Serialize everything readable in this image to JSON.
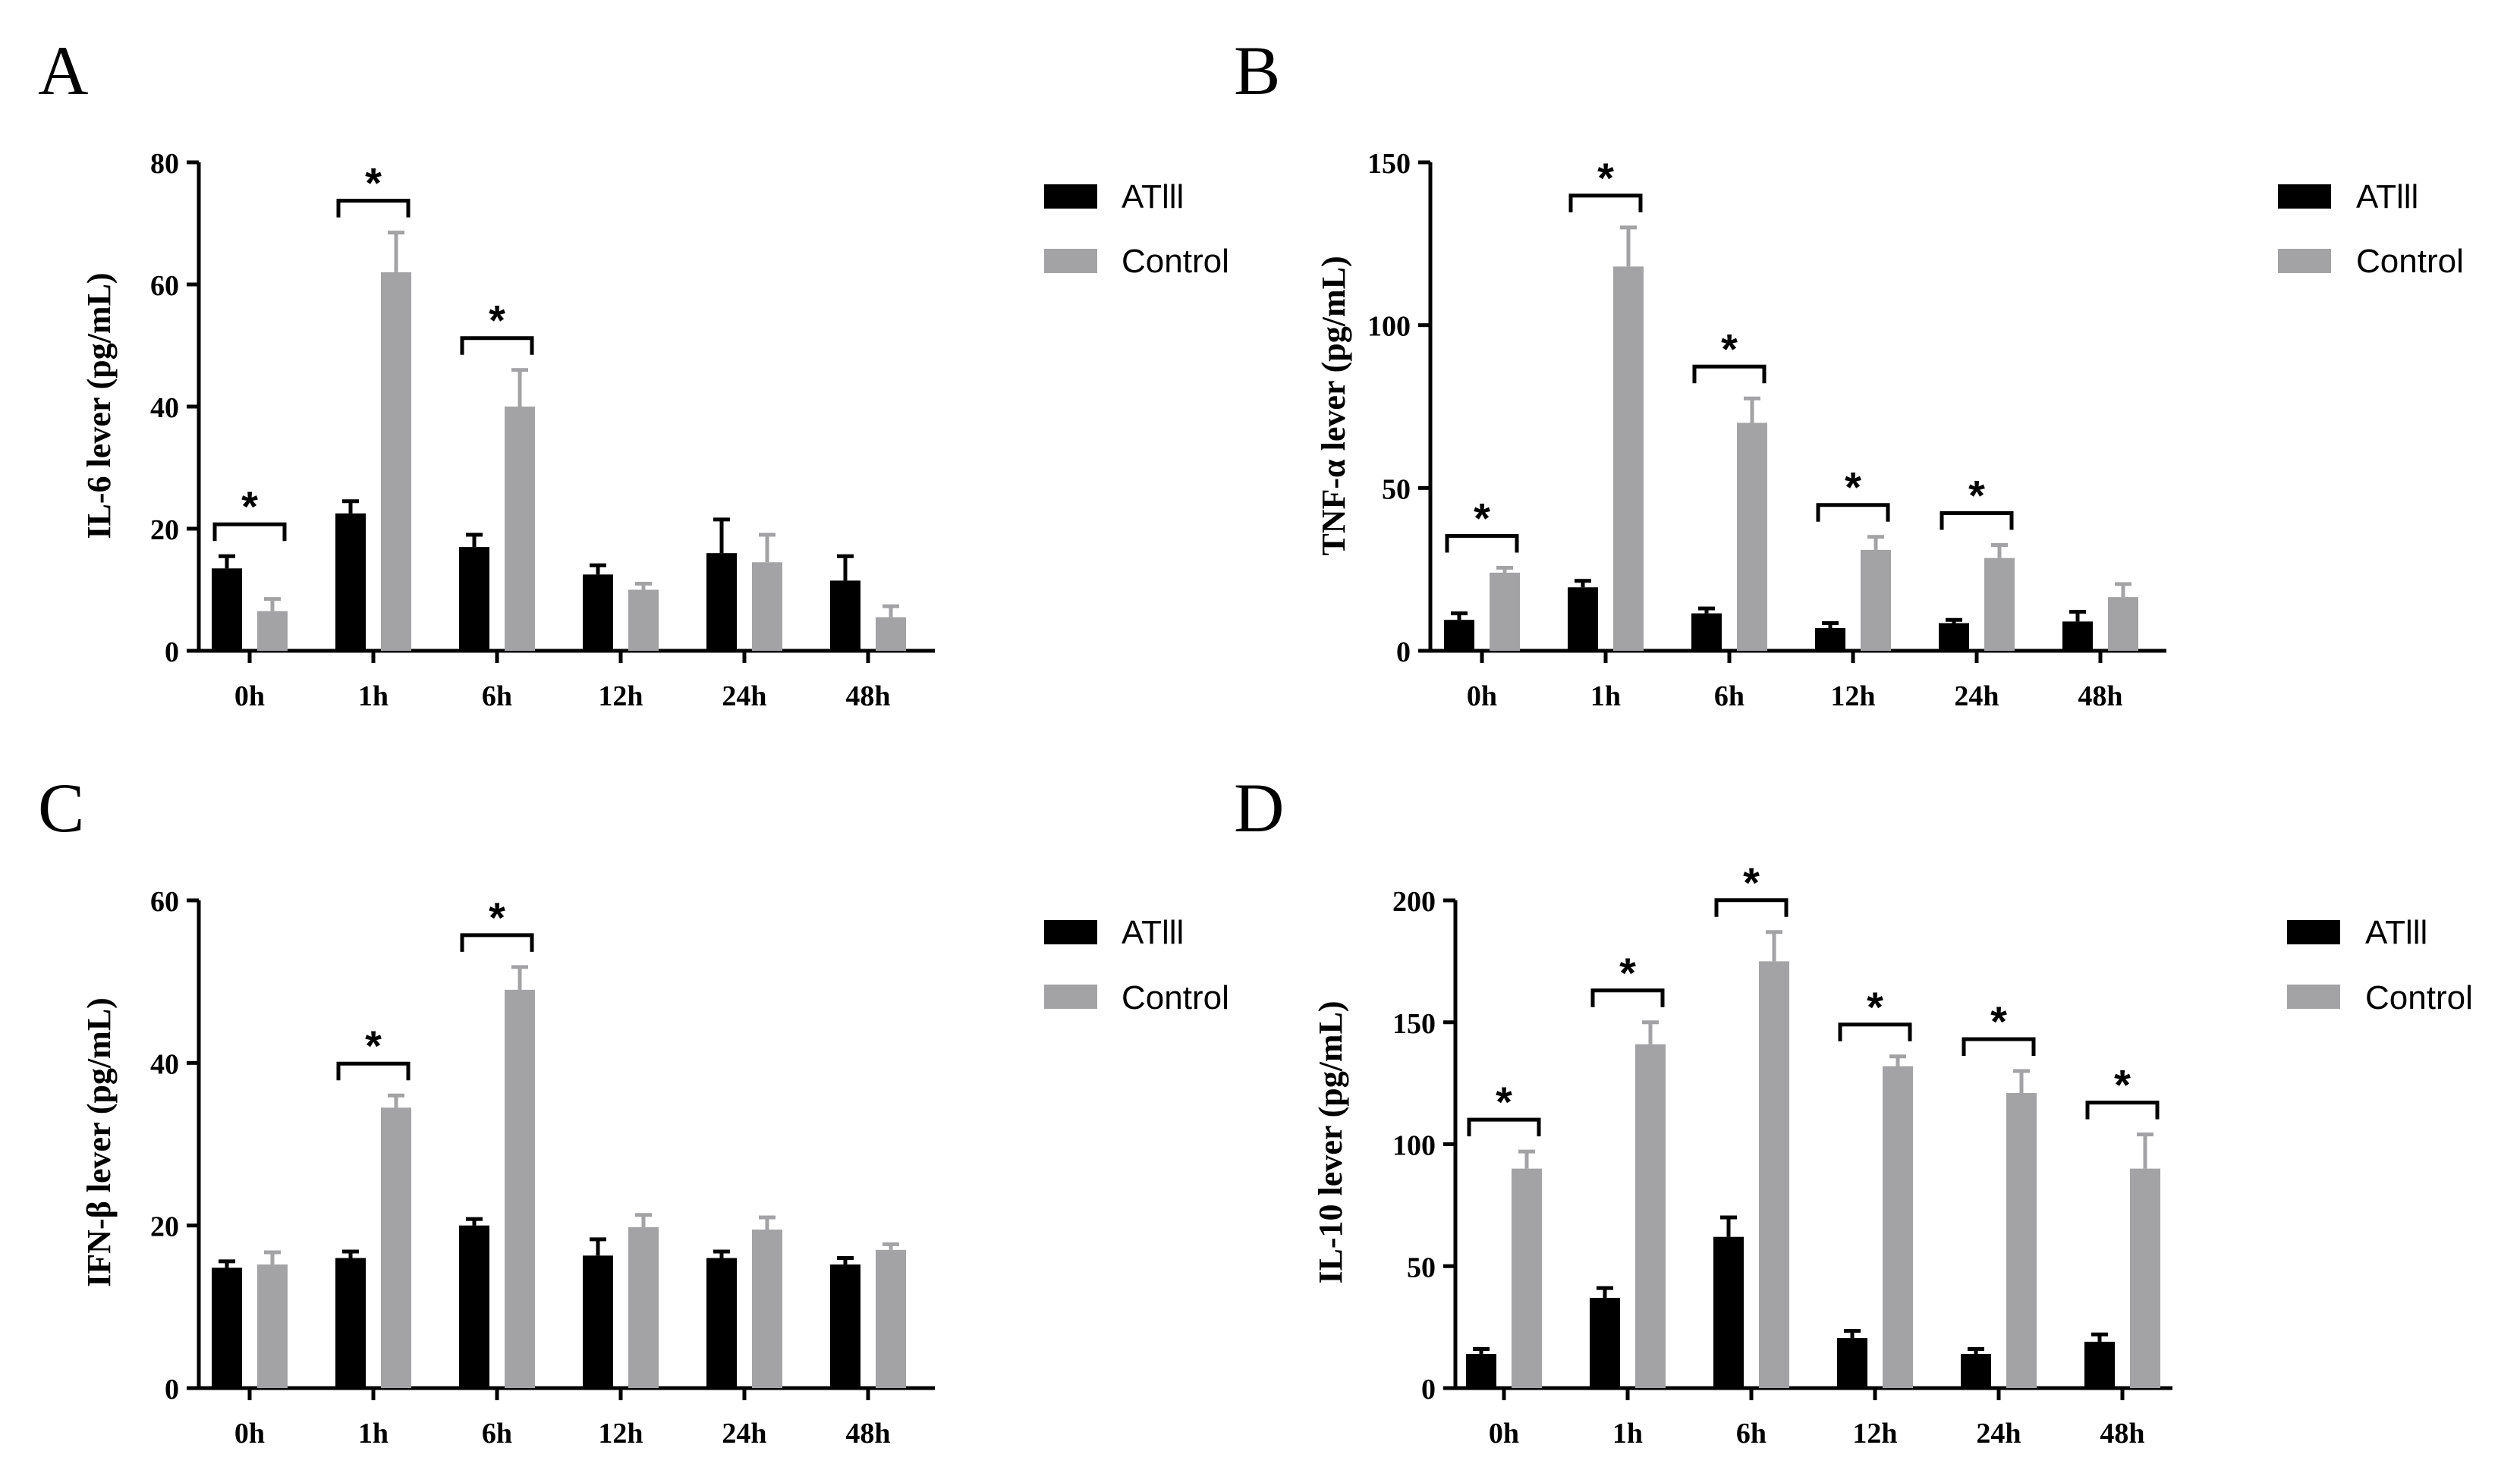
{
  "colors": {
    "atiii": "#000000",
    "control": "#a3a3a5",
    "axis": "#000000"
  },
  "chart_data": [
    {
      "type": "bar",
      "panel": "A",
      "title": "",
      "ylabel": "IL-6 lever (pg/mL)",
      "xlabel": "",
      "categories": [
        "0h",
        "1h",
        "6h",
        "12h",
        "24h",
        "48h"
      ],
      "ylim": [
        0,
        80
      ],
      "yticks": [
        0,
        20,
        40,
        60,
        80
      ],
      "ytick_labels": [
        "0",
        "20",
        "40",
        "60",
        "80"
      ],
      "series": [
        {
          "name": "ATIII",
          "label": "ATlll",
          "values": [
            13.5,
            22.5,
            17,
            12.5,
            16,
            11.5
          ],
          "errors": [
            2,
            2,
            2,
            1.5,
            5.5,
            4
          ]
        },
        {
          "name": "Control",
          "label": "Control",
          "values": [
            6.5,
            62,
            40,
            10,
            14.5,
            5.5
          ],
          "errors": [
            2,
            6.5,
            6,
            1,
            4.5,
            1.8
          ]
        }
      ],
      "significance": [
        true,
        true,
        true,
        false,
        false,
        false
      ],
      "significance_label": "*",
      "legend": "right"
    },
    {
      "type": "bar",
      "panel": "B",
      "title": "",
      "ylabel": "TNF-α lever (pg/mL)",
      "xlabel": "",
      "categories": [
        "0h",
        "1h",
        "6h",
        "12h",
        "24h",
        "48h"
      ],
      "ylim": [
        0,
        150
      ],
      "yticks": [
        0,
        50,
        100,
        150
      ],
      "ytick_labels": [
        "0",
        "50",
        "100",
        "150"
      ],
      "series": [
        {
          "name": "ATIII",
          "label": "ATlll",
          "values": [
            9.5,
            19.5,
            11.5,
            7,
            8.5,
            9
          ],
          "errors": [
            2,
            2,
            1.5,
            1.5,
            1,
            3
          ]
        },
        {
          "name": "Control",
          "label": "Control",
          "values": [
            24,
            118,
            70,
            31,
            28.5,
            16.5
          ],
          "errors": [
            1.5,
            12,
            7.5,
            4,
            4,
            4
          ]
        }
      ],
      "significance": [
        true,
        true,
        true,
        true,
        true,
        false
      ],
      "significance_label": "*",
      "legend": "right"
    },
    {
      "type": "bar",
      "panel": "C",
      "title": "",
      "ylabel": "IFN-β lever (pg/mL)",
      "xlabel": "",
      "categories": [
        "0h",
        "1h",
        "6h",
        "12h",
        "24h",
        "48h"
      ],
      "ylim": [
        0,
        60
      ],
      "yticks": [
        0,
        20,
        40,
        60
      ],
      "ytick_labels": [
        "0",
        "20",
        "40",
        "60"
      ],
      "series": [
        {
          "name": "ATIII",
          "label": "ATlll",
          "values": [
            14.8,
            16,
            20,
            16.3,
            16,
            15.2
          ],
          "errors": [
            0.8,
            0.8,
            0.8,
            2,
            0.8,
            0.8
          ]
        },
        {
          "name": "Control",
          "label": "Control",
          "values": [
            15.2,
            34.5,
            49,
            19.8,
            19.5,
            17
          ],
          "errors": [
            1.5,
            1.5,
            2.8,
            1.5,
            1.5,
            0.7
          ]
        }
      ],
      "significance": [
        false,
        true,
        true,
        false,
        false,
        false
      ],
      "significance_label": "*",
      "legend": "right"
    },
    {
      "type": "bar",
      "panel": "D",
      "title": "",
      "ylabel": "IL-10 lever (pg/mL)",
      "xlabel": "",
      "categories": [
        "0h",
        "1h",
        "6h",
        "12h",
        "24h",
        "48h"
      ],
      "ylim": [
        0,
        200
      ],
      "yticks": [
        0,
        50,
        100,
        150,
        200
      ],
      "ytick_labels": [
        "0",
        "50",
        "100",
        "150",
        "200"
      ],
      "series": [
        {
          "name": "ATIII",
          "label": "ATlll",
          "values": [
            14,
            37,
            62,
            20.5,
            14,
            19
          ],
          "errors": [
            2,
            4,
            8,
            3,
            2,
            3
          ]
        },
        {
          "name": "Control",
          "label": "Control",
          "values": [
            90,
            141,
            175,
            132,
            121,
            90
          ],
          "errors": [
            7,
            9,
            12,
            4,
            9,
            14
          ]
        }
      ],
      "significance": [
        true,
        true,
        true,
        true,
        true,
        true
      ],
      "significance_label": "*",
      "legend": "right"
    }
  ]
}
